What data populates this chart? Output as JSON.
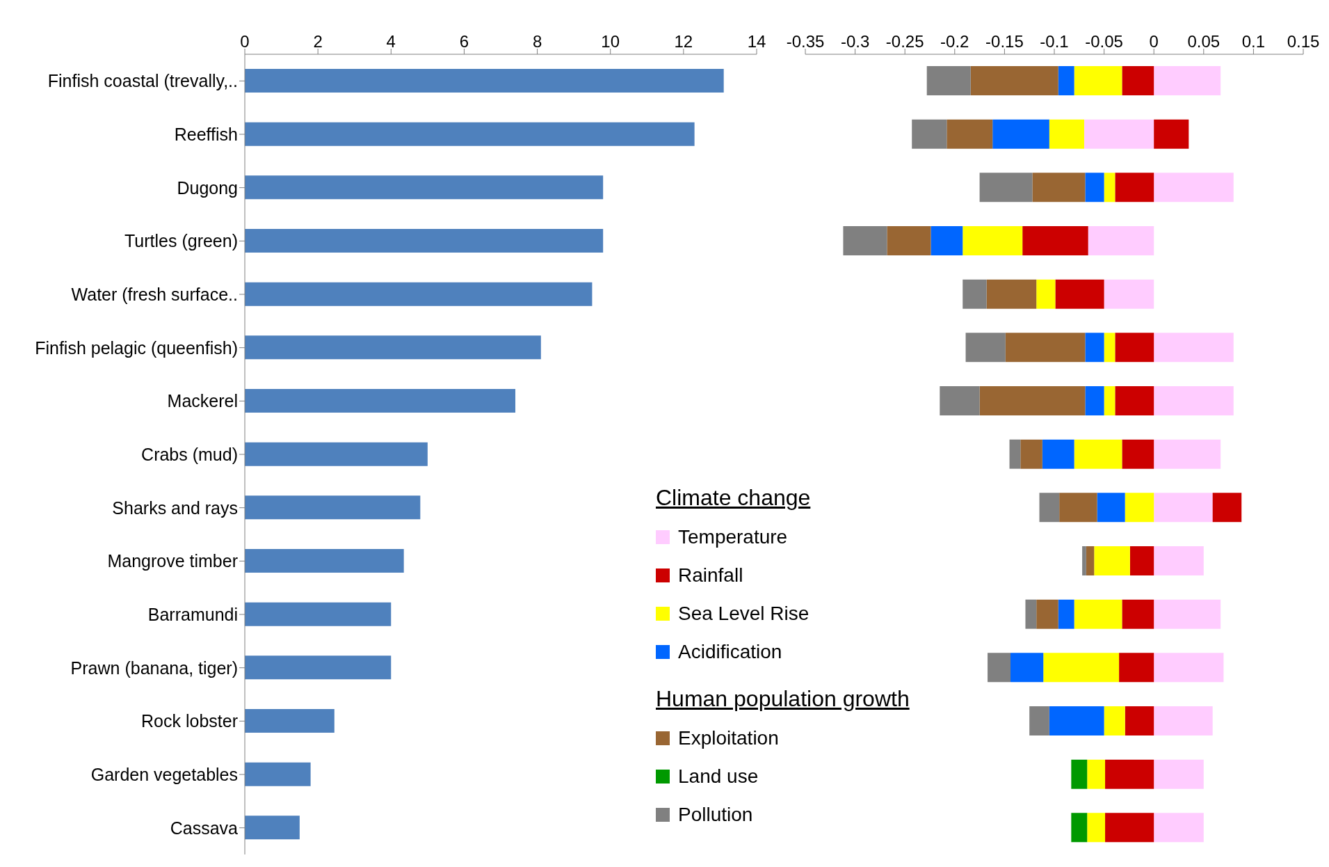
{
  "chart_data": [
    {
      "type": "bar",
      "orientation": "horizontal",
      "categories": [
        "Finfish coastal (trevally,..",
        "Reeffish",
        "Dugong",
        "Turtles (green)",
        "Water (fresh surface..",
        "Finfish pelagic (queenfish)",
        "Mackerel",
        "Crabs (mud)",
        "Sharks and rays",
        "Mangrove timber",
        "Barramundi",
        "Prawn (banana,  tiger)",
        "Rock lobster",
        "Garden vegetables",
        "Cassava"
      ],
      "values": [
        13.1,
        12.3,
        9.8,
        9.8,
        9.5,
        8.1,
        7.4,
        5.0,
        4.8,
        4.35,
        4.0,
        4.0,
        2.45,
        1.8,
        1.5
      ],
      "color": "#4f81bd",
      "xlim": [
        0,
        14
      ],
      "xticks": [
        0,
        2,
        4,
        6,
        8,
        10,
        12,
        14
      ]
    },
    {
      "type": "bar",
      "orientation": "horizontal",
      "stacked": true,
      "tick_labels": "x",
      "legend": "bottom left",
      "categories": [
        null,
        null,
        null,
        null,
        null,
        null,
        null,
        null,
        null,
        null,
        null,
        null,
        null,
        null,
        null
      ],
      "series": [
        {
          "name": "Temperature",
          "color": "#ffccff",
          "values": [
            0.067,
            -0.07,
            0.08,
            -0.066,
            -0.05,
            0.08,
            0.08,
            0.067,
            0.059,
            0.05,
            0.067,
            0.07,
            0.059,
            0.05,
            0.05
          ]
        },
        {
          "name": "Rainfall",
          "color": "#cc0000",
          "values": [
            -0.032,
            0.035,
            -0.039,
            -0.066,
            -0.049,
            -0.039,
            -0.039,
            -0.032,
            0.029,
            -0.024,
            -0.032,
            -0.035,
            -0.029,
            -0.049,
            -0.049
          ]
        },
        {
          "name": "Sea Level Rise",
          "color": "#ffff00",
          "values": [
            -0.048,
            -0.035,
            -0.011,
            -0.06,
            -0.019,
            -0.011,
            -0.011,
            -0.048,
            -0.029,
            -0.036,
            -0.048,
            -0.076,
            -0.021,
            -0.018,
            -0.018
          ]
        },
        {
          "name": "Acidification",
          "color": "#0066ff",
          "values": [
            -0.016,
            -0.057,
            -0.019,
            -0.032,
            null,
            -0.019,
            -0.019,
            -0.032,
            -0.028,
            null,
            -0.016,
            -0.033,
            -0.055,
            null,
            null
          ]
        },
        {
          "name": "Exploitation",
          "color": "#996633",
          "values": [
            -0.088,
            -0.046,
            -0.053,
            -0.044,
            -0.05,
            -0.08,
            -0.106,
            -0.022,
            -0.038,
            -0.008,
            -0.022,
            null,
            null,
            null,
            null
          ]
        },
        {
          "name": "Land use",
          "color": "#009900",
          "values": [
            null,
            null,
            null,
            null,
            null,
            null,
            null,
            null,
            null,
            null,
            null,
            null,
            null,
            -0.016,
            -0.016
          ]
        },
        {
          "name": "Pollution",
          "color": "#808080",
          "values": [
            -0.044,
            -0.035,
            -0.053,
            -0.044,
            -0.024,
            -0.04,
            -0.04,
            -0.011,
            -0.02,
            -0.004,
            -0.011,
            -0.023,
            -0.02,
            null,
            null
          ]
        }
      ],
      "xlim": [
        -0.35,
        0.15
      ],
      "xticks": [
        -0.35,
        -0.3,
        -0.25,
        -0.2,
        -0.15,
        -0.1,
        -0.05,
        0,
        0.05,
        0.1,
        0.15
      ],
      "annotations": [
        "Climate change",
        "Human population growth"
      ]
    }
  ]
}
